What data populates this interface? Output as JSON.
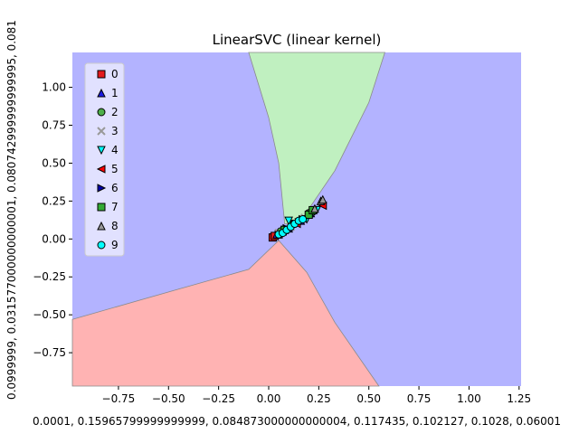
{
  "chart_data": {
    "type": "scatter",
    "title": "LinearSVC (linear kernel)",
    "xlabel": "0.0001, 0.15965799999999999, 0.084873000000000004, 0.117435, 0.102127, 0.1028, 0.06001",
    "ylabel": "0.0999999, 0.031577000000000001, 0.080742999999999995, 0.081",
    "xlim": [
      -0.98,
      1.26
    ],
    "ylim": [
      -0.97,
      1.23
    ],
    "x_ticks": [
      "−0.75",
      "−0.50",
      "−0.25",
      "0.00",
      "0.25",
      "0.50",
      "0.75",
      "1.00",
      "1.25"
    ],
    "x_tick_values": [
      -0.75,
      -0.5,
      -0.25,
      0.0,
      0.25,
      0.5,
      0.75,
      1.0,
      1.25
    ],
    "y_ticks": [
      "−0.75",
      "−0.50",
      "−0.25",
      "0.00",
      "0.25",
      "0.50",
      "0.75",
      "1.00"
    ],
    "y_tick_values": [
      -0.75,
      -0.5,
      -0.25,
      0.0,
      0.25,
      0.5,
      0.75,
      1.0
    ],
    "grid": false,
    "legend_position": "top-left",
    "regions": [
      {
        "class": "background",
        "color": "#b3b3ff"
      },
      {
        "class": "red",
        "color": "#ffb3b3",
        "polygon": [
          [
            -0.98,
            -0.53
          ],
          [
            -0.45,
            -0.33
          ],
          [
            -0.1,
            -0.2
          ],
          [
            0.05,
            -0.01
          ],
          [
            0.19,
            -0.22
          ],
          [
            0.33,
            -0.55
          ],
          [
            0.55,
            -0.97
          ],
          [
            -0.98,
            -0.97
          ]
        ]
      },
      {
        "class": "green",
        "color": "#c0f0c0",
        "polygon": [
          [
            0.3,
            1.23
          ],
          [
            0.58,
            1.23
          ],
          [
            0.5,
            0.9
          ],
          [
            0.33,
            0.45
          ],
          [
            0.15,
            0.1
          ],
          [
            0.08,
            0.1
          ],
          [
            0.05,
            0.5
          ],
          [
            0.0,
            0.8
          ],
          [
            -0.1,
            1.23
          ]
        ]
      }
    ],
    "legend": [
      {
        "label": "0",
        "marker": "square",
        "color": "#e41a1c"
      },
      {
        "label": "1",
        "marker": "triangle-up",
        "color": "#1c1ce4"
      },
      {
        "label": "2",
        "marker": "circle",
        "color": "#4daf4a"
      },
      {
        "label": "3",
        "marker": "x",
        "color": "#999999"
      },
      {
        "label": "4",
        "marker": "triangle-down",
        "color": "#00ffff"
      },
      {
        "label": "5",
        "marker": "triangle-left",
        "color": "#ff0000"
      },
      {
        "label": "6",
        "marker": "triangle-right",
        "color": "#0000aa"
      },
      {
        "label": "7",
        "marker": "square",
        "color": "#33aa33"
      },
      {
        "label": "8",
        "marker": "triangle-up",
        "color": "#999999"
      },
      {
        "label": "9",
        "marker": "circle",
        "color": "#00ffff"
      }
    ],
    "series": [
      {
        "name": "0",
        "points": [
          [
            0.02,
            0.01
          ],
          [
            0.03,
            0.02
          ],
          [
            0.05,
            0.03
          ],
          [
            0.08,
            0.06
          ]
        ]
      },
      {
        "name": "1",
        "points": [
          [
            0.04,
            0.03
          ],
          [
            0.1,
            0.07
          ],
          [
            0.16,
            0.12
          ],
          [
            0.21,
            0.17
          ]
        ]
      },
      {
        "name": "2",
        "points": [
          [
            0.06,
            0.05
          ],
          [
            0.12,
            0.1
          ],
          [
            0.2,
            0.17
          ],
          [
            0.22,
            0.18
          ]
        ]
      },
      {
        "name": "3",
        "points": [
          [
            0.05,
            0.04
          ],
          [
            0.11,
            0.08
          ],
          [
            0.18,
            0.14
          ]
        ]
      },
      {
        "name": "4",
        "points": [
          [
            0.1,
            0.12
          ],
          [
            0.15,
            0.11
          ],
          [
            0.19,
            0.13
          ],
          [
            0.24,
            0.19
          ]
        ]
      },
      {
        "name": "5",
        "points": [
          [
            0.07,
            0.05
          ],
          [
            0.14,
            0.1
          ],
          [
            0.27,
            0.22
          ]
        ]
      },
      {
        "name": "6",
        "points": [
          [
            0.09,
            0.07
          ],
          [
            0.13,
            0.1
          ],
          [
            0.17,
            0.13
          ]
        ]
      },
      {
        "name": "7",
        "points": [
          [
            0.08,
            0.06
          ],
          [
            0.2,
            0.16
          ],
          [
            0.22,
            0.19
          ]
        ]
      },
      {
        "name": "8",
        "points": [
          [
            0.26,
            0.25
          ],
          [
            0.27,
            0.26
          ],
          [
            0.23,
            0.2
          ]
        ]
      },
      {
        "name": "9",
        "points": [
          [
            0.05,
            0.03
          ],
          [
            0.07,
            0.04
          ],
          [
            0.09,
            0.06
          ],
          [
            0.11,
            0.08
          ],
          [
            0.13,
            0.1
          ],
          [
            0.15,
            0.12
          ],
          [
            0.17,
            0.13
          ]
        ]
      }
    ]
  }
}
